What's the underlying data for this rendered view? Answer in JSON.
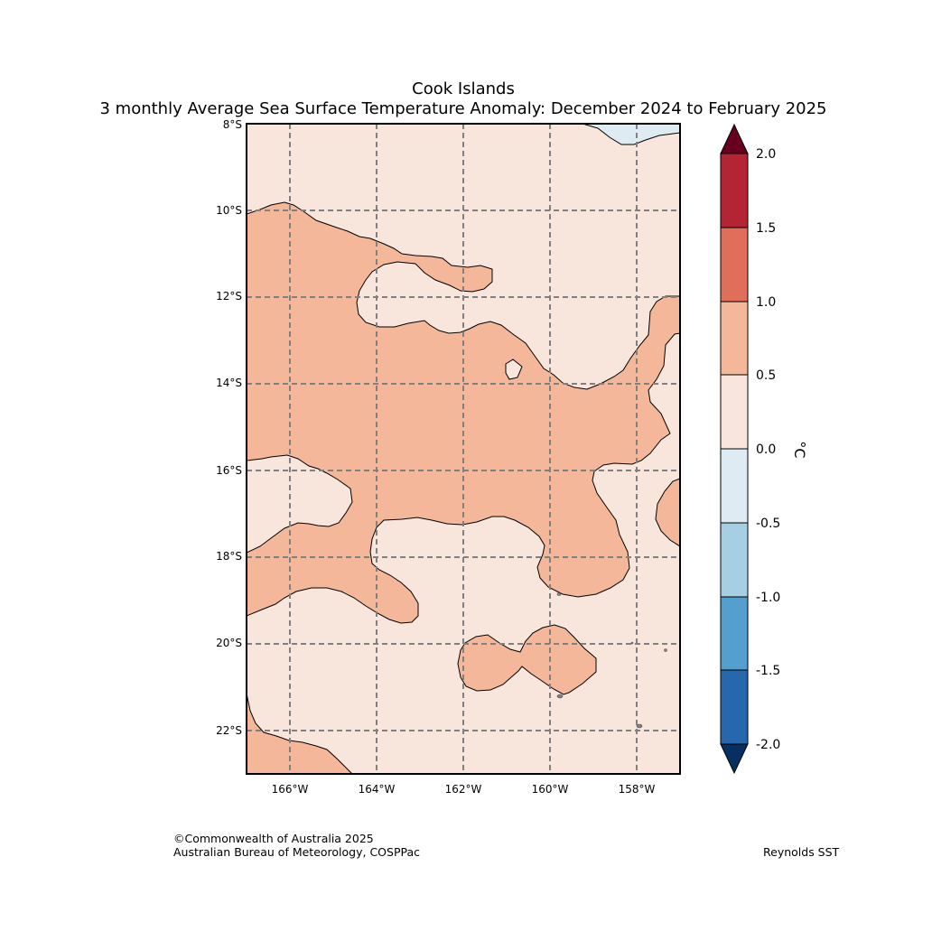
{
  "title": {
    "line1": "Cook Islands",
    "line2": "3 monthly Average Sea Surface Temperature Anomaly: December 2024 to February 2025"
  },
  "map": {
    "lat_labels": [
      "8°S",
      "10°S",
      "12°S",
      "14°S",
      "16°S",
      "18°S",
      "20°S",
      "22°S"
    ],
    "lon_labels": [
      "166°W",
      "164°W",
      "162°W",
      "160°W",
      "158°W"
    ],
    "fill_colors": {
      "anomaly_0_to_0_5": "#f8e6dc",
      "anomaly_0_5_to_1_0": "#f5b799",
      "anomaly_minus_0_5_to_0": "#deebf3",
      "island": "#808080"
    }
  },
  "colorbar": {
    "unit": "°C",
    "tick_labels": [
      "2.0",
      "1.5",
      "1.0",
      "0.5",
      "0.0",
      "-0.5",
      "-1.0",
      "-1.5",
      "-2.0"
    ],
    "colors": {
      "above_max": "#67001f",
      "b_1_5_to_2_0": "#b32535",
      "b_1_0_to_1_5": "#df6f5a",
      "b_0_5_to_1_0": "#f5b799",
      "b_0_0_to_0_5": "#f8e6dc",
      "b_minus_0_5_to_0_0": "#deebf3",
      "b_minus_1_0_to_minus_0_5": "#a6cfe3",
      "b_minus_1_5_to_minus_1_0": "#549fcd",
      "b_minus_2_0_to_minus_1_5": "#2667ae",
      "below_min": "#053061"
    }
  },
  "footer": {
    "copyright_line1": "©Commonwealth of Australia 2025",
    "copyright_line2": "Australian Bureau of Meteorology, COSPPac",
    "data_source": "Reynolds SST"
  }
}
